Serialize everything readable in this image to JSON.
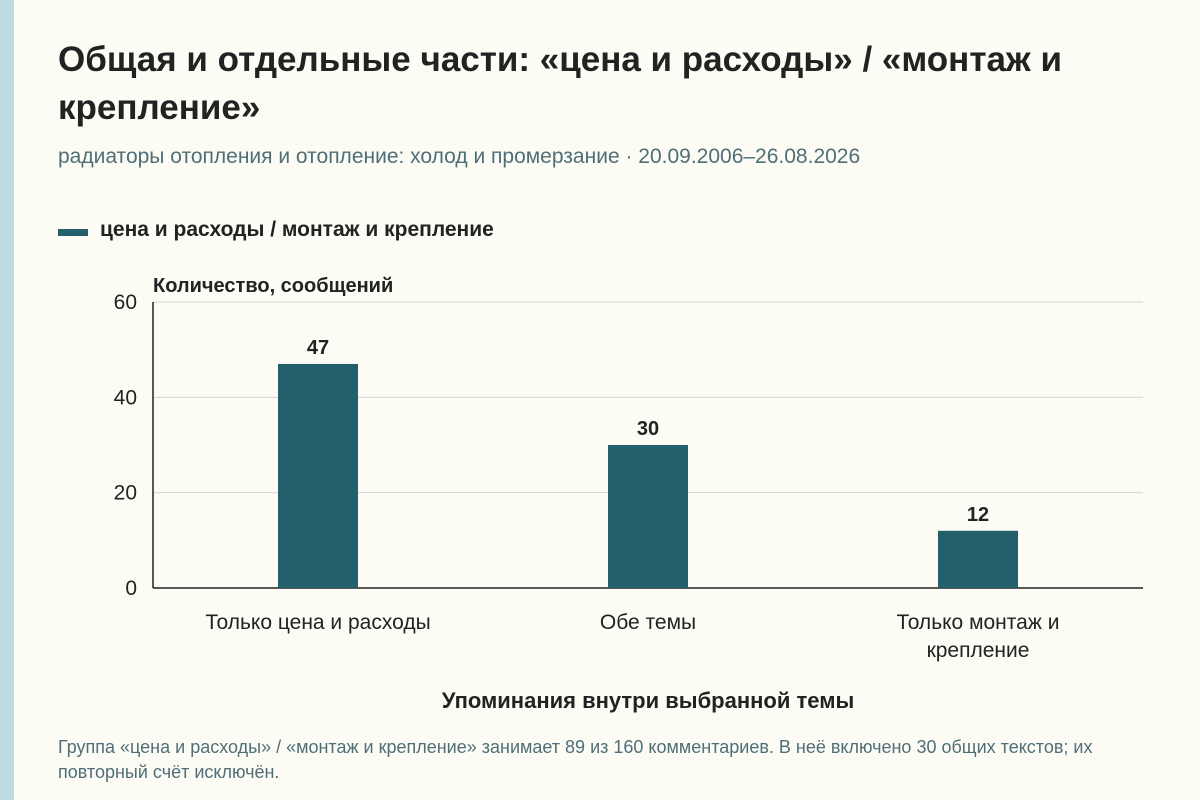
{
  "header": {
    "title": "Общая и отдельные части: «цена и расходы» / «монтаж и крепление»",
    "subtitle": "радиаторы отопления и отопление: холод и промерзание · 20.09.2006–26.08.2026"
  },
  "legend": {
    "label": "цена и расходы / монтаж и крепление",
    "color": "#23606b"
  },
  "chart_data": {
    "type": "bar",
    "categories": [
      [
        "Только цена и расходы"
      ],
      [
        "Обе темы"
      ],
      [
        "Только монтаж и",
        "крепление"
      ]
    ],
    "series": [
      {
        "name": "цена и расходы / монтаж и крепление",
        "values": [
          47,
          30,
          12
        ],
        "color": "#23606b"
      }
    ],
    "ylabel": "Количество, сообщений",
    "xlabel": "Упоминания внутри выбранной темы",
    "ylim": [
      0,
      60
    ],
    "yticks": [
      "0",
      "20",
      "40",
      "60"
    ],
    "grid": true,
    "data_labels": true,
    "legend_position": "top-left"
  },
  "footnote": "Группа «цена и расходы» / «монтаж и крепление» занимает 89 из 160 комментариев. В неё включено 30 общих текстов; их повторный счёт исключён."
}
